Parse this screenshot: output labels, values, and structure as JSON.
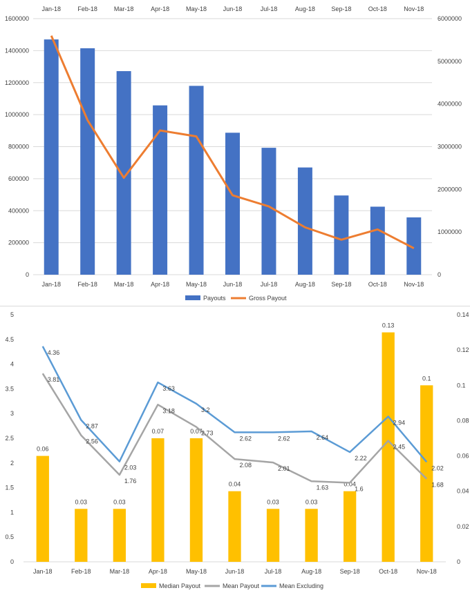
{
  "chart_data": [
    {
      "type": "bar",
      "categories": [
        "Jan-18",
        "Feb-18",
        "Mar-18",
        "Apr-18",
        "May-18",
        "Jun-18",
        "Jul-18",
        "Aug-18",
        "Sep-18",
        "Oct-18",
        "Nov-18"
      ],
      "series": [
        {
          "name": "Payouts",
          "type": "bar",
          "axis": "left",
          "color": "#4472C4",
          "values": [
            1470000,
            1415000,
            1272000,
            1058000,
            1180000,
            887000,
            793000,
            670000,
            495000,
            425000,
            358000
          ]
        },
        {
          "name": "Gross Payout",
          "type": "line",
          "axis": "right",
          "color": "#ED7D31",
          "values": [
            5600000,
            3620000,
            2270000,
            3380000,
            3240000,
            1860000,
            1600000,
            1110000,
            820000,
            1060000,
            620000
          ]
        }
      ],
      "y_left": {
        "min": 0,
        "max": 1600000,
        "step": 200000
      },
      "y_right": {
        "min": 0,
        "max": 6000000,
        "step": 1000000
      },
      "grid": true,
      "legend": "bottom",
      "top_category_labels": true
    },
    {
      "type": "bar",
      "categories": [
        "Jan-18",
        "Feb-18",
        "Mar-18",
        "Apr-18",
        "May-18",
        "Jun-18",
        "Jul-18",
        "Aug-18",
        "Sep-18",
        "Oct-18",
        "Nov-18"
      ],
      "series": [
        {
          "name": "Median Payout",
          "type": "bar",
          "axis": "right",
          "color": "#FFC000",
          "values": [
            0.06,
            0.03,
            0.03,
            0.07,
            0.07,
            0.04,
            0.03,
            0.03,
            0.04,
            0.13,
            0.1
          ],
          "labels": [
            "0.06",
            "0.03",
            "0.03",
            "0.07",
            "0.07",
            "0.04",
            "0.03",
            "0.03",
            "0.04",
            "0.13",
            "0.1"
          ]
        },
        {
          "name": "Mean Payout",
          "type": "line",
          "axis": "left",
          "color": "#A5A5A5",
          "values": [
            3.81,
            2.56,
            1.76,
            3.18,
            2.73,
            2.08,
            2.01,
            1.63,
            1.6,
            2.45,
            1.68
          ],
          "labels": [
            "3.81",
            "2.56",
            "1.76",
            "3.18",
            "2.73",
            "2.08",
            "2.01",
            "1.63",
            "1.6",
            "2.45",
            "1.68"
          ]
        },
        {
          "name": "Mean Excluding",
          "type": "line",
          "axis": "left",
          "color": "#5B9BD5",
          "values": [
            4.36,
            2.87,
            2.03,
            3.63,
            3.2,
            2.62,
            2.62,
            2.64,
            2.22,
            2.94,
            2.02
          ],
          "labels": [
            "4.36",
            "2.87",
            "2.03",
            "3.63",
            "3.2",
            "2.62",
            "2.62",
            "2.64",
            "2.22",
            "2.94",
            "2.02"
          ]
        }
      ],
      "y_left": {
        "min": 0,
        "max": 5,
        "step": 0.5,
        "ticks": [
          "0",
          "0.5",
          "1",
          "1.5",
          "2",
          "2.5",
          "3",
          "3.5",
          "4",
          "4.5",
          "5"
        ]
      },
      "y_right": {
        "min": 0,
        "max": 0.14,
        "step": 0.02,
        "ticks": [
          "0",
          "0.02",
          "0.04",
          "0.06",
          "0.08",
          "0.1",
          "0.12",
          "0.14"
        ]
      },
      "grid": false,
      "legend": "bottom"
    }
  ]
}
